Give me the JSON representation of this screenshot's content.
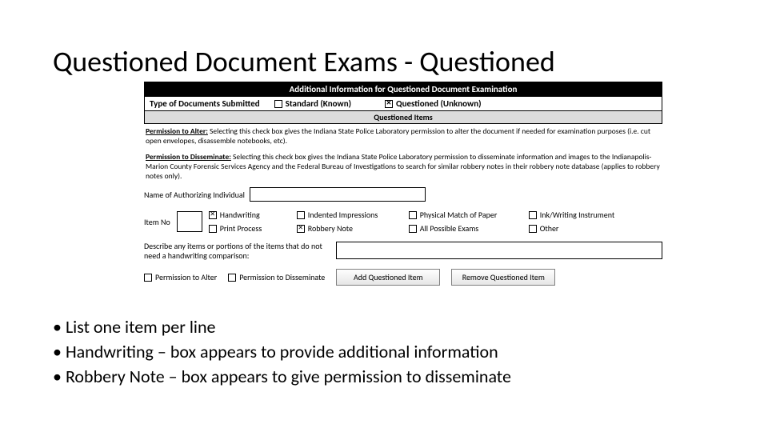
{
  "title": "Questioned Document Exams - Questioned",
  "form": {
    "banner": "Additional Information for Questioned Document Examination",
    "doc_type_label": "Type of Documents Submitted",
    "doc_type_options": [
      {
        "label": "Standard (Known)",
        "checked": false
      },
      {
        "label": "Questioned (Unknown)",
        "checked": true
      }
    ],
    "questioned_items_header": "Questioned Items",
    "permission_alter": {
      "lead": "Permission to Alter:",
      "text": " Selecting this check box gives the Indiana State Police Laboratory permission to alter the document if needed for examination purposes (i.e. cut open envelopes, disassemble notebooks, etc)."
    },
    "permission_disseminate": {
      "lead": "Permission to Disseminate:",
      "text": " Selecting this check box gives the Indiana State Police Laboratory permission to disseminate information and images to the Indianapolis-Marion County Forensic Services Agency and the Federal Bureau of Investigations to search for similar robbery notes in their robbery note database (applies to robbery notes only)."
    },
    "name_label": "Name of Authorizing Individual",
    "item_no_label": "Item No",
    "exam_checks": [
      {
        "label": "Handwriting",
        "checked": true
      },
      {
        "label": "Indented Impressions",
        "checked": false
      },
      {
        "label": "Physical Match of Paper",
        "checked": false
      },
      {
        "label": "Ink/Writing Instrument",
        "checked": false
      },
      {
        "label": "Print Process",
        "checked": false
      },
      {
        "label": "Robbery Note",
        "checked": true
      },
      {
        "label": "All Possible Exams",
        "checked": false
      },
      {
        "label": "Other",
        "checked": false
      }
    ],
    "describe_label": "Describe any items or portions of the items that do not need a handwriting comparison:",
    "perm_alter_cb": "Permission to Alter",
    "perm_dissem_cb": "Permission to Disseminate",
    "btn_add": "Add Questioned Item",
    "btn_remove": "Remove Questioned Item"
  },
  "bullets": [
    "List one item per line",
    "Handwriting – box appears to provide additional information",
    "Robbery Note – box appears to give permission to disseminate"
  ],
  "colors": {
    "background": "#ffffff",
    "text": "#000000",
    "banner_bg": "#000000",
    "banner_fg": "#ffffff",
    "subheader_bg": "#dcdcdc",
    "button_border": "#808080"
  }
}
